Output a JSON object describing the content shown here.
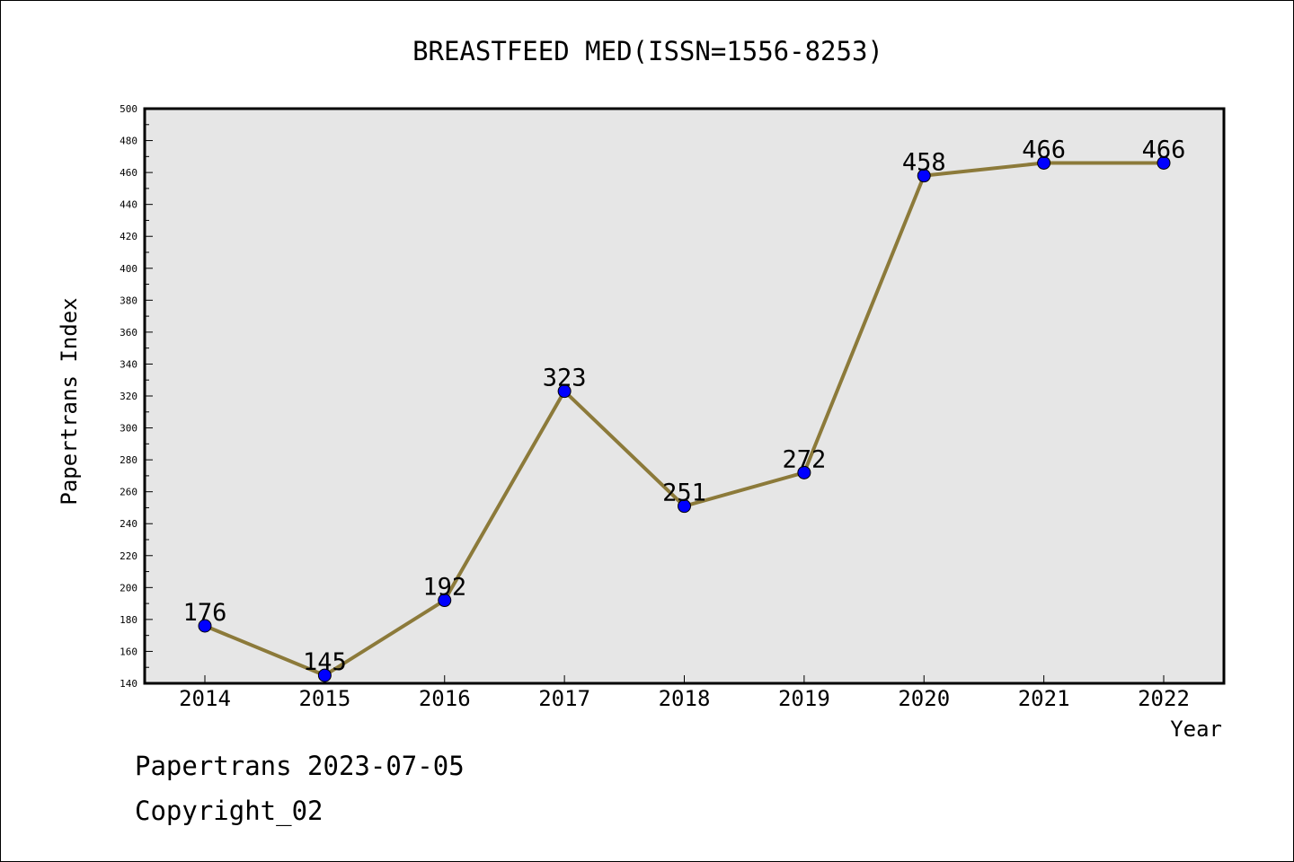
{
  "chart_data": {
    "type": "line",
    "title": "BREASTFEED MED(ISSN=1556-8253)",
    "xlabel": "Year",
    "ylabel": "Papertrans Index",
    "categories": [
      "2014",
      "2015",
      "2016",
      "2017",
      "2018",
      "2019",
      "2020",
      "2021",
      "2022"
    ],
    "series": [
      {
        "values": [
          176,
          145,
          192,
          323,
          251,
          272,
          458,
          466,
          466
        ]
      }
    ],
    "ylim": [
      140,
      500
    ],
    "y_ticks": [
      140,
      160,
      180,
      200,
      220,
      240,
      260,
      280,
      300,
      320,
      340,
      360,
      380,
      400,
      420,
      440,
      460,
      480,
      500
    ],
    "grid": false,
    "data_labels": true,
    "colors": {
      "line": "#8c7a3a",
      "marker": "#0000ff",
      "plot_background": "#e6e6e6"
    }
  },
  "footer": {
    "line1": "Papertrans 2023-07-05",
    "line2": "Copyright_02"
  }
}
